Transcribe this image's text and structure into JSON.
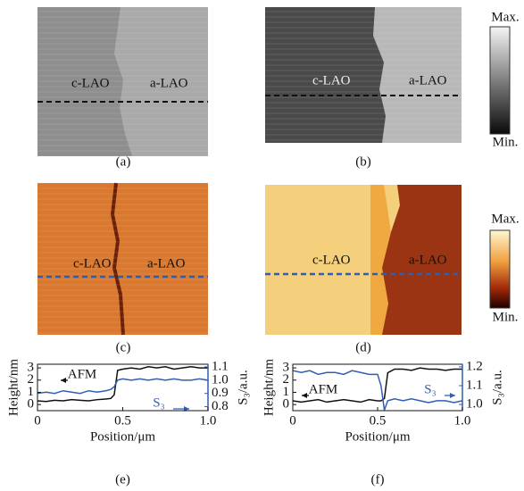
{
  "panels": [
    {
      "label": "(a)",
      "left_text": "c-LAO",
      "right_text": "a-LAO"
    },
    {
      "label": "(b)",
      "left_text": "c-LAO",
      "right_text": "a-LAO"
    },
    {
      "label": "(c)",
      "left_text": "c-LAO",
      "right_text": "a-LAO"
    },
    {
      "label": "(d)",
      "left_text": "c-LAO",
      "right_text": "a-LAO"
    }
  ],
  "colorbars": [
    {
      "max": "Max.",
      "min": "Min."
    },
    {
      "max": "Max.",
      "min": "Min."
    }
  ],
  "chart_data": [
    {
      "type": "line",
      "label": "(e)",
      "x_label": "Position/μm",
      "y_label": "Height/nm",
      "y2_label": "S₃/a.u.",
      "x": [
        0,
        0.05,
        0.1,
        0.15,
        0.2,
        0.25,
        0.3,
        0.35,
        0.4,
        0.43,
        0.45,
        0.47,
        0.5,
        0.55,
        0.6,
        0.65,
        0.7,
        0.75,
        0.8,
        0.85,
        0.9,
        0.95,
        1.0
      ],
      "series": [
        {
          "name": "AFM",
          "color": "#111111",
          "values": [
            0.3,
            0.25,
            0.35,
            0.3,
            0.4,
            0.35,
            0.3,
            0.4,
            0.45,
            0.5,
            0.8,
            2.8,
            2.9,
            3.0,
            2.9,
            3.1,
            3.0,
            3.1,
            2.9,
            3.0,
            3.1,
            3.0,
            3.0
          ]
        },
        {
          "name": "S₃",
          "color": "#2f5fb0",
          "axis": "y2",
          "values": [
            0.9,
            0.91,
            0.9,
            0.92,
            0.91,
            0.9,
            0.92,
            0.91,
            0.92,
            0.93,
            0.95,
            1.0,
            1.01,
            1.0,
            1.01,
            1.0,
            1.01,
            1.0,
            1.01,
            1.0,
            1.0,
            1.01,
            1.0
          ]
        }
      ],
      "xlim": [
        0,
        1
      ],
      "xticks": [
        0,
        0.5,
        {
          "value": 1,
          "label": "1.0"
        }
      ],
      "ylim": [
        -0.5,
        3.3
      ],
      "yticks": [
        0,
        1,
        2,
        3
      ],
      "y2lim": [
        0.77,
        1.12
      ],
      "y2ticks": [
        0.8,
        0.9,
        {
          "value": 1,
          "label": "1.0"
        },
        1.1
      ]
    },
    {
      "type": "line",
      "label": "(f)",
      "x_label": "Position/μm",
      "y_label": "Height/nm",
      "y2_label": "S₃/a.u.",
      "x": [
        0,
        0.05,
        0.1,
        0.15,
        0.2,
        0.25,
        0.3,
        0.35,
        0.4,
        0.45,
        0.5,
        0.52,
        0.54,
        0.56,
        0.6,
        0.65,
        0.7,
        0.75,
        0.8,
        0.85,
        0.9,
        0.95,
        1.0
      ],
      "series": [
        {
          "name": "AFM",
          "color": "#111111",
          "values": [
            0.3,
            0.2,
            0.3,
            0.4,
            0.2,
            0.3,
            0.4,
            0.3,
            0.2,
            0.4,
            0.3,
            0.3,
            0.5,
            2.6,
            2.9,
            2.9,
            2.8,
            3.0,
            2.9,
            2.9,
            2.8,
            2.9,
            2.9
          ]
        },
        {
          "name": "S₃",
          "color": "#2f5fb0",
          "axis": "y2",
          "values": [
            1.18,
            1.17,
            1.18,
            1.16,
            1.17,
            1.17,
            1.16,
            1.18,
            1.17,
            1.16,
            1.16,
            1.1,
            0.97,
            1.02,
            1.03,
            1.02,
            1.03,
            1.02,
            1.01,
            1.02,
            1.02,
            1.01,
            1.02
          ]
        }
      ],
      "xlim": [
        0,
        1
      ],
      "xticks": [
        0,
        0.5,
        {
          "value": 1,
          "label": "1.0"
        }
      ],
      "ylim": [
        -0.5,
        3.3
      ],
      "yticks": [
        0,
        1,
        2,
        3
      ],
      "y2lim": [
        0.967,
        1.214
      ],
      "y2ticks": [
        {
          "value": 1,
          "label": "1.0"
        },
        1.1,
        1.2
      ]
    }
  ]
}
